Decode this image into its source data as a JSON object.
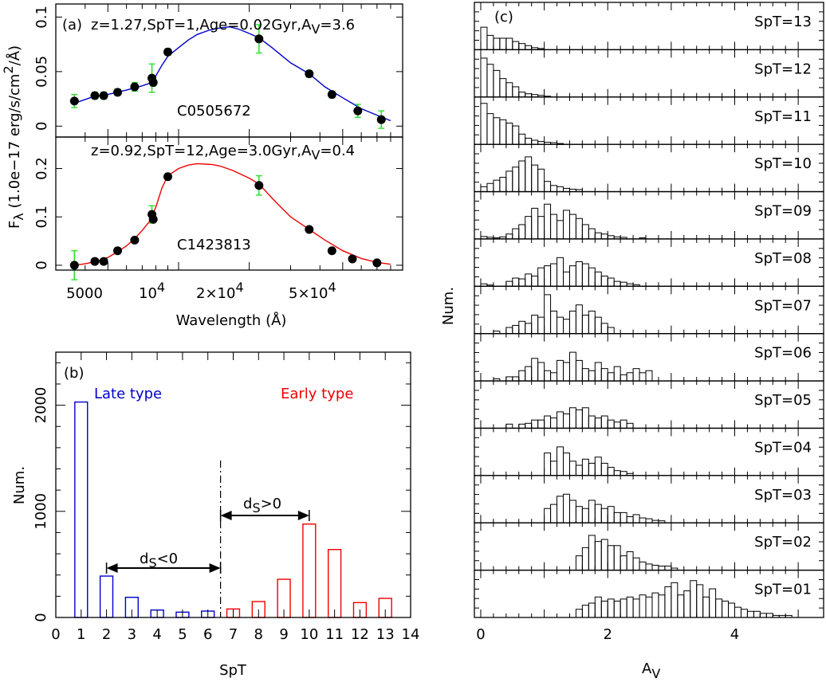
{
  "panel_a": {
    "label": "(a)",
    "xlabel": "Wavelength (Å)",
    "ylabel_parts": [
      "F",
      "λ",
      " (1.0e−17 erg/s/cm",
      "2",
      "/Å)"
    ],
    "xtick_labels": {
      "w5000": "5000",
      "w1e4_base": "10",
      "w1e4_exp": "4",
      "w2e4_base": "2×10",
      "w2e4_exp": "4",
      "w5e4_base": "5×10",
      "w5e4_exp": "4"
    },
    "top": {
      "info_parts": [
        "z=1.27,SpT=1,Age=0.02Gyr,A",
        "V",
        "=3.6"
      ],
      "name": "C0505672",
      "yticks": [
        {
          "v": 0,
          "label": "0"
        },
        {
          "v": 0.05,
          "label": "0.05"
        },
        {
          "v": 0.1,
          "label": "0.1"
        }
      ],
      "ylim": [
        -0.01,
        0.112
      ],
      "color": "#0000cc",
      "spectrum": [
        [
          3600,
          0.021
        ],
        [
          4200,
          0.026
        ],
        [
          5000,
          0.029
        ],
        [
          6000,
          0.033
        ],
        [
          7000,
          0.037
        ],
        [
          7700,
          0.04
        ],
        [
          8000,
          0.046
        ],
        [
          8500,
          0.056
        ],
        [
          9000,
          0.064
        ],
        [
          10000,
          0.072
        ],
        [
          11000,
          0.079
        ],
        [
          12000,
          0.084
        ],
        [
          13500,
          0.088
        ],
        [
          15000,
          0.09
        ],
        [
          16500,
          0.091
        ],
        [
          18000,
          0.089
        ],
        [
          20000,
          0.085
        ],
        [
          22000,
          0.081
        ],
        [
          25000,
          0.072
        ],
        [
          30000,
          0.058
        ],
        [
          36000,
          0.048
        ],
        [
          42000,
          0.036
        ],
        [
          50000,
          0.026
        ],
        [
          60000,
          0.016
        ],
        [
          70000,
          0.01
        ],
        [
          80000,
          0.005
        ]
      ],
      "points": [
        [
          3600,
          0.023,
          0.006
        ],
        [
          4400,
          0.028,
          0.003
        ],
        [
          4800,
          0.028,
          0.003
        ],
        [
          5500,
          0.031,
          0.003
        ],
        [
          6500,
          0.036,
          0.004
        ],
        [
          7700,
          0.044,
          0.013
        ],
        [
          7800,
          0.04,
          0.003
        ],
        [
          9000,
          0.068,
          0.003
        ],
        [
          22000,
          0.08,
          0.013
        ],
        [
          36000,
          0.048,
          0.003
        ],
        [
          45000,
          0.029,
          0.003
        ],
        [
          58000,
          0.014,
          0.006
        ],
        [
          73000,
          0.006,
          0.008
        ]
      ]
    },
    "bottom": {
      "info_parts": [
        "z=0.92,SpT=12,Age=3.0Gyr,A",
        "V",
        "=0.4"
      ],
      "name": "C1423813",
      "yticks": [
        {
          "v": 0,
          "label": "0"
        },
        {
          "v": 0.1,
          "label": "0.1"
        },
        {
          "v": 0.2,
          "label": "0.2"
        }
      ],
      "ylim": [
        -0.01,
        0.265
      ],
      "color": "#ee0000",
      "spectrum": [
        [
          3600,
          0.0
        ],
        [
          4000,
          0.003
        ],
        [
          4500,
          0.008
        ],
        [
          5000,
          0.016
        ],
        [
          5500,
          0.028
        ],
        [
          6000,
          0.04
        ],
        [
          6500,
          0.055
        ],
        [
          7000,
          0.072
        ],
        [
          7500,
          0.09
        ],
        [
          8000,
          0.12
        ],
        [
          8500,
          0.16
        ],
        [
          9000,
          0.185
        ],
        [
          10000,
          0.2
        ],
        [
          11000,
          0.207
        ],
        [
          12000,
          0.21
        ],
        [
          13000,
          0.209
        ],
        [
          14000,
          0.208
        ],
        [
          15000,
          0.205
        ],
        [
          17000,
          0.196
        ],
        [
          20000,
          0.18
        ],
        [
          22000,
          0.168
        ],
        [
          26000,
          0.13
        ],
        [
          30000,
          0.1
        ],
        [
          36000,
          0.074
        ],
        [
          42000,
          0.052
        ],
        [
          50000,
          0.03
        ],
        [
          60000,
          0.014
        ],
        [
          70000,
          0.006
        ],
        [
          80000,
          0.002
        ]
      ],
      "points": [
        [
          3600,
          0.0,
          0.03
        ],
        [
          4400,
          0.008,
          0.005
        ],
        [
          4800,
          0.008,
          0.005
        ],
        [
          5500,
          0.03,
          0.006
        ],
        [
          6500,
          0.052,
          0.005
        ],
        [
          7700,
          0.105,
          0.018
        ],
        [
          7800,
          0.095,
          0.005
        ],
        [
          9000,
          0.183,
          0.005
        ],
        [
          22000,
          0.165,
          0.02
        ],
        [
          36000,
          0.074,
          0.005
        ],
        [
          45000,
          0.03,
          0.005
        ],
        [
          55000,
          0.013,
          0.005
        ],
        [
          70000,
          0.005,
          0.005
        ]
      ]
    }
  },
  "panel_b": {
    "label": "(b)",
    "late_label": "Late type",
    "early_label": "Early type",
    "ds_neg_parts": [
      "d",
      "S",
      "<0"
    ],
    "ds_pos_parts": [
      "d",
      "S",
      ">0"
    ],
    "dashed_line_at": 6.5,
    "late_color": "#0000cc",
    "early_color": "#ee0000"
  },
  "panel_c": {
    "label": "(c)",
    "xlabel_parts": [
      "A",
      "V"
    ],
    "ylabel": "Num."
  },
  "chart_data": [
    {
      "type": "bar",
      "title": "(b)",
      "xlabel": "SpT",
      "ylabel": "Num.",
      "xlim": [
        0,
        14
      ],
      "ylim": [
        0,
        2500
      ],
      "xticks": [
        0,
        1,
        2,
        3,
        4,
        5,
        6,
        7,
        8,
        9,
        10,
        11,
        12,
        13,
        14
      ],
      "yticks": [
        0,
        1000,
        2000
      ],
      "categories": [
        1,
        2,
        3,
        4,
        5,
        6,
        7,
        8,
        9,
        10,
        11,
        12,
        13
      ],
      "values": [
        2030,
        390,
        190,
        70,
        50,
        60,
        80,
        150,
        360,
        880,
        640,
        140,
        180
      ],
      "series_type": [
        "late",
        "late",
        "late",
        "late",
        "late",
        "late",
        "early",
        "early",
        "early",
        "early",
        "early",
        "early",
        "early"
      ]
    },
    {
      "type": "histogram",
      "title": "(c)",
      "xlabel": "AV",
      "ylabel": "Num.",
      "xlim": [
        -0.1,
        5.4
      ],
      "xticks": [
        0,
        2,
        4
      ],
      "bin_width": 0.1,
      "panels": [
        {
          "label": "SpT=13",
          "start": 0.0,
          "values": [
            0.55,
            0.35,
            0.28,
            0.28,
            0.28,
            0.2,
            0.15,
            0.1,
            0.05,
            0.03
          ]
        },
        {
          "label": "SpT=12",
          "start": 0.0,
          "values": [
            0.95,
            0.8,
            0.65,
            0.45,
            0.35,
            0.25,
            0.12,
            0.08,
            0.06,
            0.04,
            0.02
          ]
        },
        {
          "label": "SpT=11",
          "start": 0.0,
          "values": [
            1.0,
            0.75,
            0.65,
            0.6,
            0.52,
            0.45,
            0.25,
            0.15,
            0.1,
            0.07,
            0.05,
            0.04,
            0.02
          ]
        },
        {
          "label": "SpT=10",
          "start": 0.0,
          "values": [
            0.12,
            0.2,
            0.28,
            0.35,
            0.5,
            0.6,
            0.75,
            0.85,
            0.65,
            0.55,
            0.25,
            0.15,
            0.12,
            0.08,
            0.06,
            0.05
          ]
        },
        {
          "label": "SpT=09",
          "start": 0.0,
          "values": [
            0.06,
            0.04,
            0.03,
            0.05,
            0.12,
            0.25,
            0.35,
            0.55,
            0.75,
            0.55,
            0.85,
            0.6,
            0.45,
            0.7,
            0.6,
            0.5,
            0.35,
            0.25,
            0.15,
            0.12,
            0.08,
            0.05,
            0.04,
            0.0,
            0.0,
            0.03
          ]
        },
        {
          "label": "SpT=08",
          "start": 0.0,
          "values": [
            0.06,
            0.03,
            0.0,
            0.0,
            0.12,
            0.2,
            0.18,
            0.3,
            0.25,
            0.45,
            0.5,
            0.55,
            0.7,
            0.35,
            0.5,
            0.6,
            0.55,
            0.45,
            0.35,
            0.25,
            0.2,
            0.12,
            0.1,
            0.06,
            0.04
          ]
        },
        {
          "label": "SpT=07",
          "start": 0.2,
          "values": [
            0.06,
            0.0,
            0.15,
            0.2,
            0.3,
            0.25,
            0.45,
            0.4,
            0.95,
            0.55,
            0.4,
            0.35,
            0.55,
            0.7,
            0.45,
            0.55,
            0.4,
            0.25,
            0.15
          ]
        },
        {
          "label": "SpT=06",
          "start": 0.2,
          "values": [
            0.05,
            0.0,
            0.1,
            0.1,
            0.25,
            0.35,
            0.55,
            0.45,
            0.25,
            0.2,
            0.5,
            0.45,
            0.7,
            0.5,
            0.3,
            0.25,
            0.45,
            0.3,
            0.2,
            0.35,
            0.15,
            0.2,
            0.3,
            0.2,
            0.25
          ]
        },
        {
          "label": "SpT=05",
          "start": 0.4,
          "values": [
            0.1,
            0.0,
            0.1,
            0.12,
            0.2,
            0.2,
            0.3,
            0.25,
            0.4,
            0.35,
            0.5,
            0.45,
            0.5,
            0.3,
            0.25,
            0.3,
            0.2,
            0.15,
            0.2,
            0.12
          ]
        },
        {
          "label": "SpT=04",
          "start": 1.0,
          "values": [
            0.55,
            0.35,
            0.7,
            0.55,
            0.35,
            0.25,
            0.4,
            0.3,
            0.45,
            0.3,
            0.2,
            0.12,
            0.1,
            0.05
          ]
        },
        {
          "label": "SpT=03",
          "start": 1.0,
          "values": [
            0.35,
            0.45,
            0.65,
            0.7,
            0.55,
            0.4,
            0.35,
            0.55,
            0.45,
            0.35,
            0.4,
            0.25,
            0.25,
            0.15,
            0.2,
            0.12,
            0.1,
            0.06,
            0.05
          ]
        },
        {
          "label": "SpT=02",
          "start": 1.5,
          "values": [
            0.35,
            0.55,
            0.85,
            0.7,
            0.75,
            0.6,
            0.6,
            0.35,
            0.45,
            0.3,
            0.2,
            0.15,
            0.12,
            0.1,
            0.1,
            0.05
          ]
        },
        {
          "label": "SpT=01",
          "start": 1.5,
          "values": [
            0.2,
            0.3,
            0.35,
            0.5,
            0.4,
            0.45,
            0.4,
            0.45,
            0.5,
            0.45,
            0.55,
            0.5,
            0.6,
            0.55,
            0.75,
            0.85,
            0.55,
            0.65,
            0.9,
            0.8,
            0.5,
            0.7,
            0.45,
            0.4,
            0.35,
            0.25,
            0.2,
            0.15,
            0.15,
            0.1,
            0.1,
            0.05,
            0.05,
            0.05
          ]
        }
      ]
    }
  ]
}
